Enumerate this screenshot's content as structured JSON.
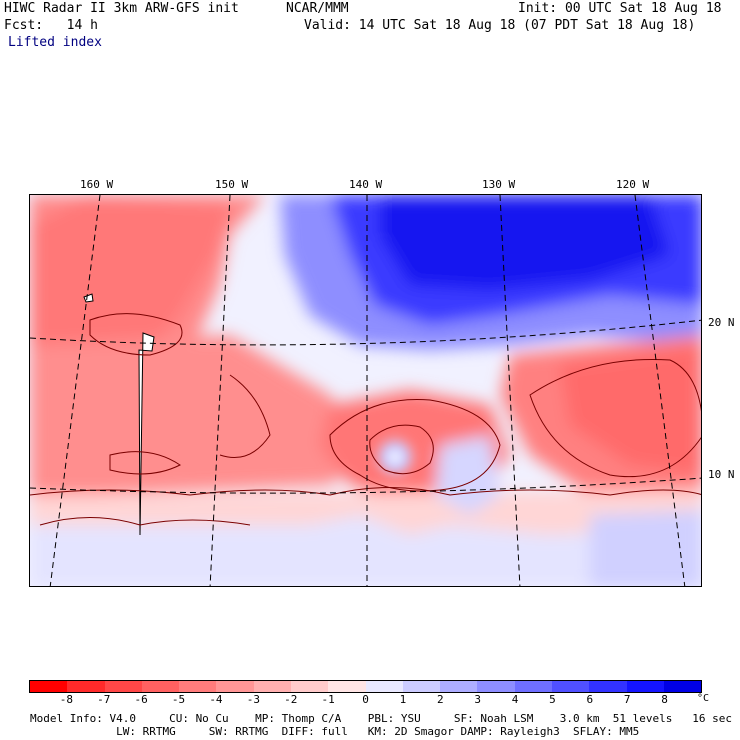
{
  "header": {
    "title": "HIWC Radar II 3km ARW-GFS init",
    "org": "NCAR/MMM",
    "init": "Init: 00 UTC Sat 18 Aug 18",
    "fcst": "Fcst:   14 h",
    "valid": "Valid: 14 UTC Sat 18 Aug 18 (07 PDT Sat 18 Aug 18)",
    "field": "Lifted index"
  },
  "map": {
    "lon_labels": [
      "160 W",
      "150 W",
      "140 W",
      "130 W",
      "120 W"
    ],
    "lat_labels": [
      "20 N",
      "10 N"
    ]
  },
  "colorbar": {
    "ticks": [
      "-8",
      "-7",
      "-6",
      "-5",
      "-4",
      "-3",
      "-2",
      "-1",
      "0",
      "1",
      "2",
      "3",
      "4",
      "5",
      "6",
      "7",
      "8"
    ],
    "unit": "°C",
    "colors": [
      "#ff0000",
      "#ff2a2a",
      "#ff4747",
      "#ff6161",
      "#ff7c7c",
      "#ff9696",
      "#ffb0b0",
      "#ffcbcb",
      "#ffe5e5",
      "#e9e9ff",
      "#ccccff",
      "#adadff",
      "#8e8eff",
      "#6f6fff",
      "#5050ff",
      "#3232ff",
      "#1414ff",
      "#0000e6"
    ]
  },
  "footer": {
    "line1": "Model Info: V4.0     CU: No Cu    MP: Thomp C/A    PBL: YSU     SF: Noah LSM    3.0 km  51 levels   16 sec",
    "line2": "             LW: RRTMG     SW: RRTMG  DIFF: full   KM: 2D Smagor DAMP: Rayleigh3  SFLAY: MM5"
  }
}
